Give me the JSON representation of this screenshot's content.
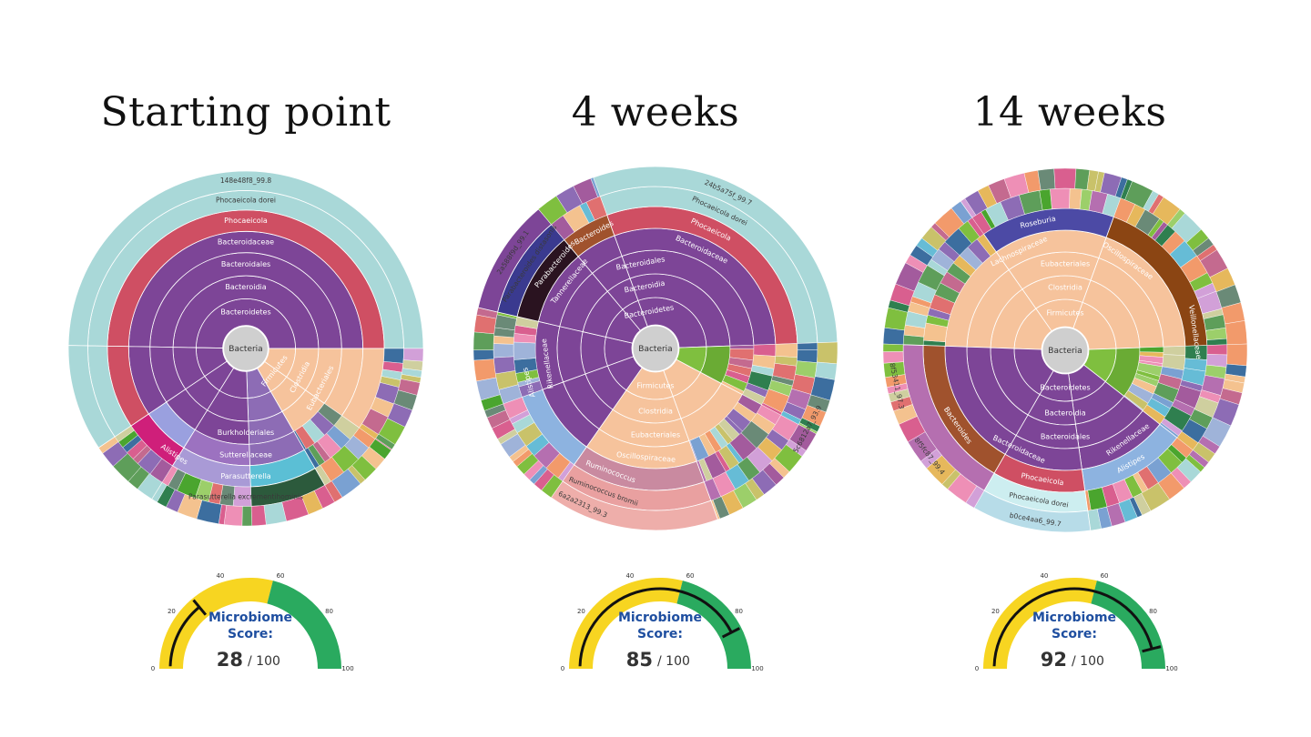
{
  "panels": [
    {
      "title": "Starting point",
      "sunburst": {
        "center": "Bacteria",
        "phyla": [
          {
            "name": "Bacteroidetes",
            "start": -89,
            "end": 172,
            "color": "#7d4597",
            "levels": [
              {
                "rank": "Bacteroidia",
                "color": "#7d4597"
              },
              {
                "rank": "Bacteroidales",
                "color": "#7d4597"
              },
              {
                "rank": "Bacteroidaceae",
                "color": "#7d4597"
              },
              {
                "rank": "Phocaeicola",
                "color": "#cf4f63"
              },
              {
                "rank": "Phocaeicola dorei",
                "color": "#a9d8d8"
              },
              {
                "rank": "148e48f8_99.8",
                "color": "#a9d8d8"
              }
            ]
          },
          {
            "name": "Firmicutes",
            "start": 90,
            "end": 145,
            "color": "#f6c39c"
          },
          {
            "name": "Proteobacteria",
            "start": 172,
            "end": 215,
            "color": "#8d6cb5"
          }
        ],
        "labels": [
          {
            "text": "148e48f8_99.8",
            "ring": 6,
            "angle": 0
          },
          {
            "text": "Phocaeicola dorei",
            "ring": 5,
            "angle": 0
          },
          {
            "text": "Phocaeicola",
            "ring": 4,
            "angle": 0
          },
          {
            "text": "Bacteroidaceae",
            "ring": 3,
            "angle": 0
          },
          {
            "text": "Bacteroidales",
            "ring": 2,
            "angle": 0
          },
          {
            "text": "Bacteroidia",
            "ring": 1,
            "angle": 0
          },
          {
            "text": "Bacteroidetes",
            "ring": 0,
            "angle": 0
          },
          {
            "text": "Clostridia",
            "ring": 1,
            "angle": 118
          },
          {
            "text": "Eubacteriales",
            "ring": 2,
            "angle": 118
          },
          {
            "text": "Firmicutes",
            "ring": 0,
            "angle": 128
          },
          {
            "text": "Burkholderiales",
            "ring": 2,
            "angle": 180
          },
          {
            "text": "Sutterellaceae",
            "ring": 3,
            "angle": 180
          },
          {
            "text": "Parasutterella",
            "ring": 4,
            "angle": 180
          },
          {
            "text": "Parasutterella excrementihominis",
            "ring": 5,
            "angle": 180
          },
          {
            "text": "Alistipes",
            "ring": 4,
            "angle": 214
          }
        ]
      },
      "gauge": {
        "score": 28,
        "max": 100,
        "label_line1": "Microbiome",
        "label_line2": "Score:",
        "score_text": "28",
        "den_text": "/ 100",
        "ticks": [
          "0",
          "20",
          "40",
          "60",
          "80",
          "100"
        ],
        "yellow_end": 58,
        "colors": {
          "low": "#f7d521",
          "high": "#2aaa5f"
        }
      }
    },
    {
      "title": "4 weeks",
      "sunburst": {
        "center": "Bacteria",
        "labels": [
          {
            "text": "24b5a75f_99.7",
            "ring": 6,
            "angle": 25
          },
          {
            "text": "Phocaeicola dorei",
            "ring": 5,
            "angle": 25
          },
          {
            "text": "Phocaeicola",
            "ring": 4,
            "angle": 25
          },
          {
            "text": "Bacteroidaceae",
            "ring": 3,
            "angle": 25
          },
          {
            "text": "Bacteroidales",
            "ring": 2,
            "angle": -10
          },
          {
            "text": "Bacteroidia",
            "ring": 1,
            "angle": -10
          },
          {
            "text": "Bacteroidetes",
            "ring": 0,
            "angle": -10
          },
          {
            "text": "Tannerellaceae",
            "ring": 3,
            "angle": -52
          },
          {
            "text": "Parabacteroides",
            "ring": 4,
            "angle": -50
          },
          {
            "text": "Parabacteroides distasonis",
            "ring": 5,
            "angle": -56
          },
          {
            "text": "2a588f9d_99.1",
            "ring": 6,
            "angle": -56
          },
          {
            "text": "Bacteroides",
            "ring": 4,
            "angle": -28
          },
          {
            "text": "Rikenellaceae",
            "ring": 3,
            "angle": -98
          },
          {
            "text": "Alistipes",
            "ring": 4,
            "angle": -105
          },
          {
            "text": "Firmicutes",
            "ring": 0,
            "angle": 180
          },
          {
            "text": "Clostridia",
            "ring": 1,
            "angle": 180
          },
          {
            "text": "Eubacteriales",
            "ring": 2,
            "angle": 180
          },
          {
            "text": "Oscillospiraceae",
            "ring": 3,
            "angle": 185
          },
          {
            "text": "Ruminococcus",
            "ring": 4,
            "angle": 200
          },
          {
            "text": "6a2a2313_99.3",
            "ring": 6,
            "angle": 205
          },
          {
            "text": "5c6812a7_93.9",
            "ring": 6,
            "angle": 118
          },
          {
            "text": "Ruminococcus bromii",
            "ring": 5,
            "angle": 200
          }
        ]
      },
      "gauge": {
        "score": 85,
        "max": 100,
        "label_line1": "Microbiome",
        "label_line2": "Score:",
        "score_text": "85",
        "den_text": "/ 100",
        "ticks": [
          "0",
          "20",
          "40",
          "60",
          "80",
          "100"
        ],
        "yellow_end": 58,
        "colors": {
          "low": "#f7d521",
          "high": "#2aaa5f"
        }
      }
    },
    {
      "title": "14 weeks",
      "sunburst": {
        "center": "Bacteria",
        "labels": [
          {
            "text": "Firmicutes",
            "ring": 0,
            "angle": 0
          },
          {
            "text": "Clostridia",
            "ring": 1,
            "angle": 0
          },
          {
            "text": "Eubacteriales",
            "ring": 2,
            "angle": 0
          },
          {
            "text": "Lachnospiraceae",
            "ring": 3,
            "angle": -25
          },
          {
            "text": "Oscillospiraceae",
            "ring": 3,
            "angle": 35
          },
          {
            "text": "Roseburia",
            "ring": 4,
            "angle": -12
          },
          {
            "text": "Veillonellaceae",
            "ring": 4,
            "angle": 82
          },
          {
            "text": "Bacteroidetes",
            "ring": 0,
            "angle": 180
          },
          {
            "text": "Bacteroidia",
            "ring": 1,
            "angle": 180
          },
          {
            "text": "Bacteroidales",
            "ring": 2,
            "angle": 180
          },
          {
            "text": "Bacteroidaceae",
            "ring": 3,
            "angle": 205
          },
          {
            "text": "Bacteroides",
            "ring": 4,
            "angle": 235
          },
          {
            "text": "Rikenellaceae",
            "ring": 3,
            "angle": 145
          },
          {
            "text": "Alistipes",
            "ring": 4,
            "angle": 150
          },
          {
            "text": "Phocaeicola",
            "ring": 4,
            "angle": 190
          },
          {
            "text": "Phocaeicola dorei",
            "ring": 5,
            "angle": 190
          },
          {
            "text": "b0ce4aa6_99.7",
            "ring": 6,
            "angle": 190
          },
          {
            "text": "8f5fc87_99.4",
            "ring": 6,
            "angle": 232
          },
          {
            "text": "8f53411_97.3",
            "ring": 6,
            "angle": 258
          }
        ]
      },
      "gauge": {
        "score": 92,
        "max": 100,
        "label_line1": "Microbiome",
        "label_line2": "Score:",
        "score_text": "92",
        "den_text": "/ 100",
        "ticks": [
          "0",
          "20",
          "40",
          "60",
          "80",
          "100"
        ],
        "yellow_end": 58,
        "colors": {
          "low": "#f7d521",
          "high": "#2aaa5f"
        }
      }
    }
  ],
  "chart_data": [
    {
      "type": "gauge",
      "title": "Starting point",
      "score": 28,
      "max": 100,
      "label": "Microbiome Score:"
    },
    {
      "type": "gauge",
      "title": "4 weeks",
      "score": 85,
      "max": 100,
      "label": "Microbiome Score:"
    },
    {
      "type": "gauge",
      "title": "14 weeks",
      "score": 92,
      "max": 100,
      "label": "Microbiome Score:"
    }
  ]
}
